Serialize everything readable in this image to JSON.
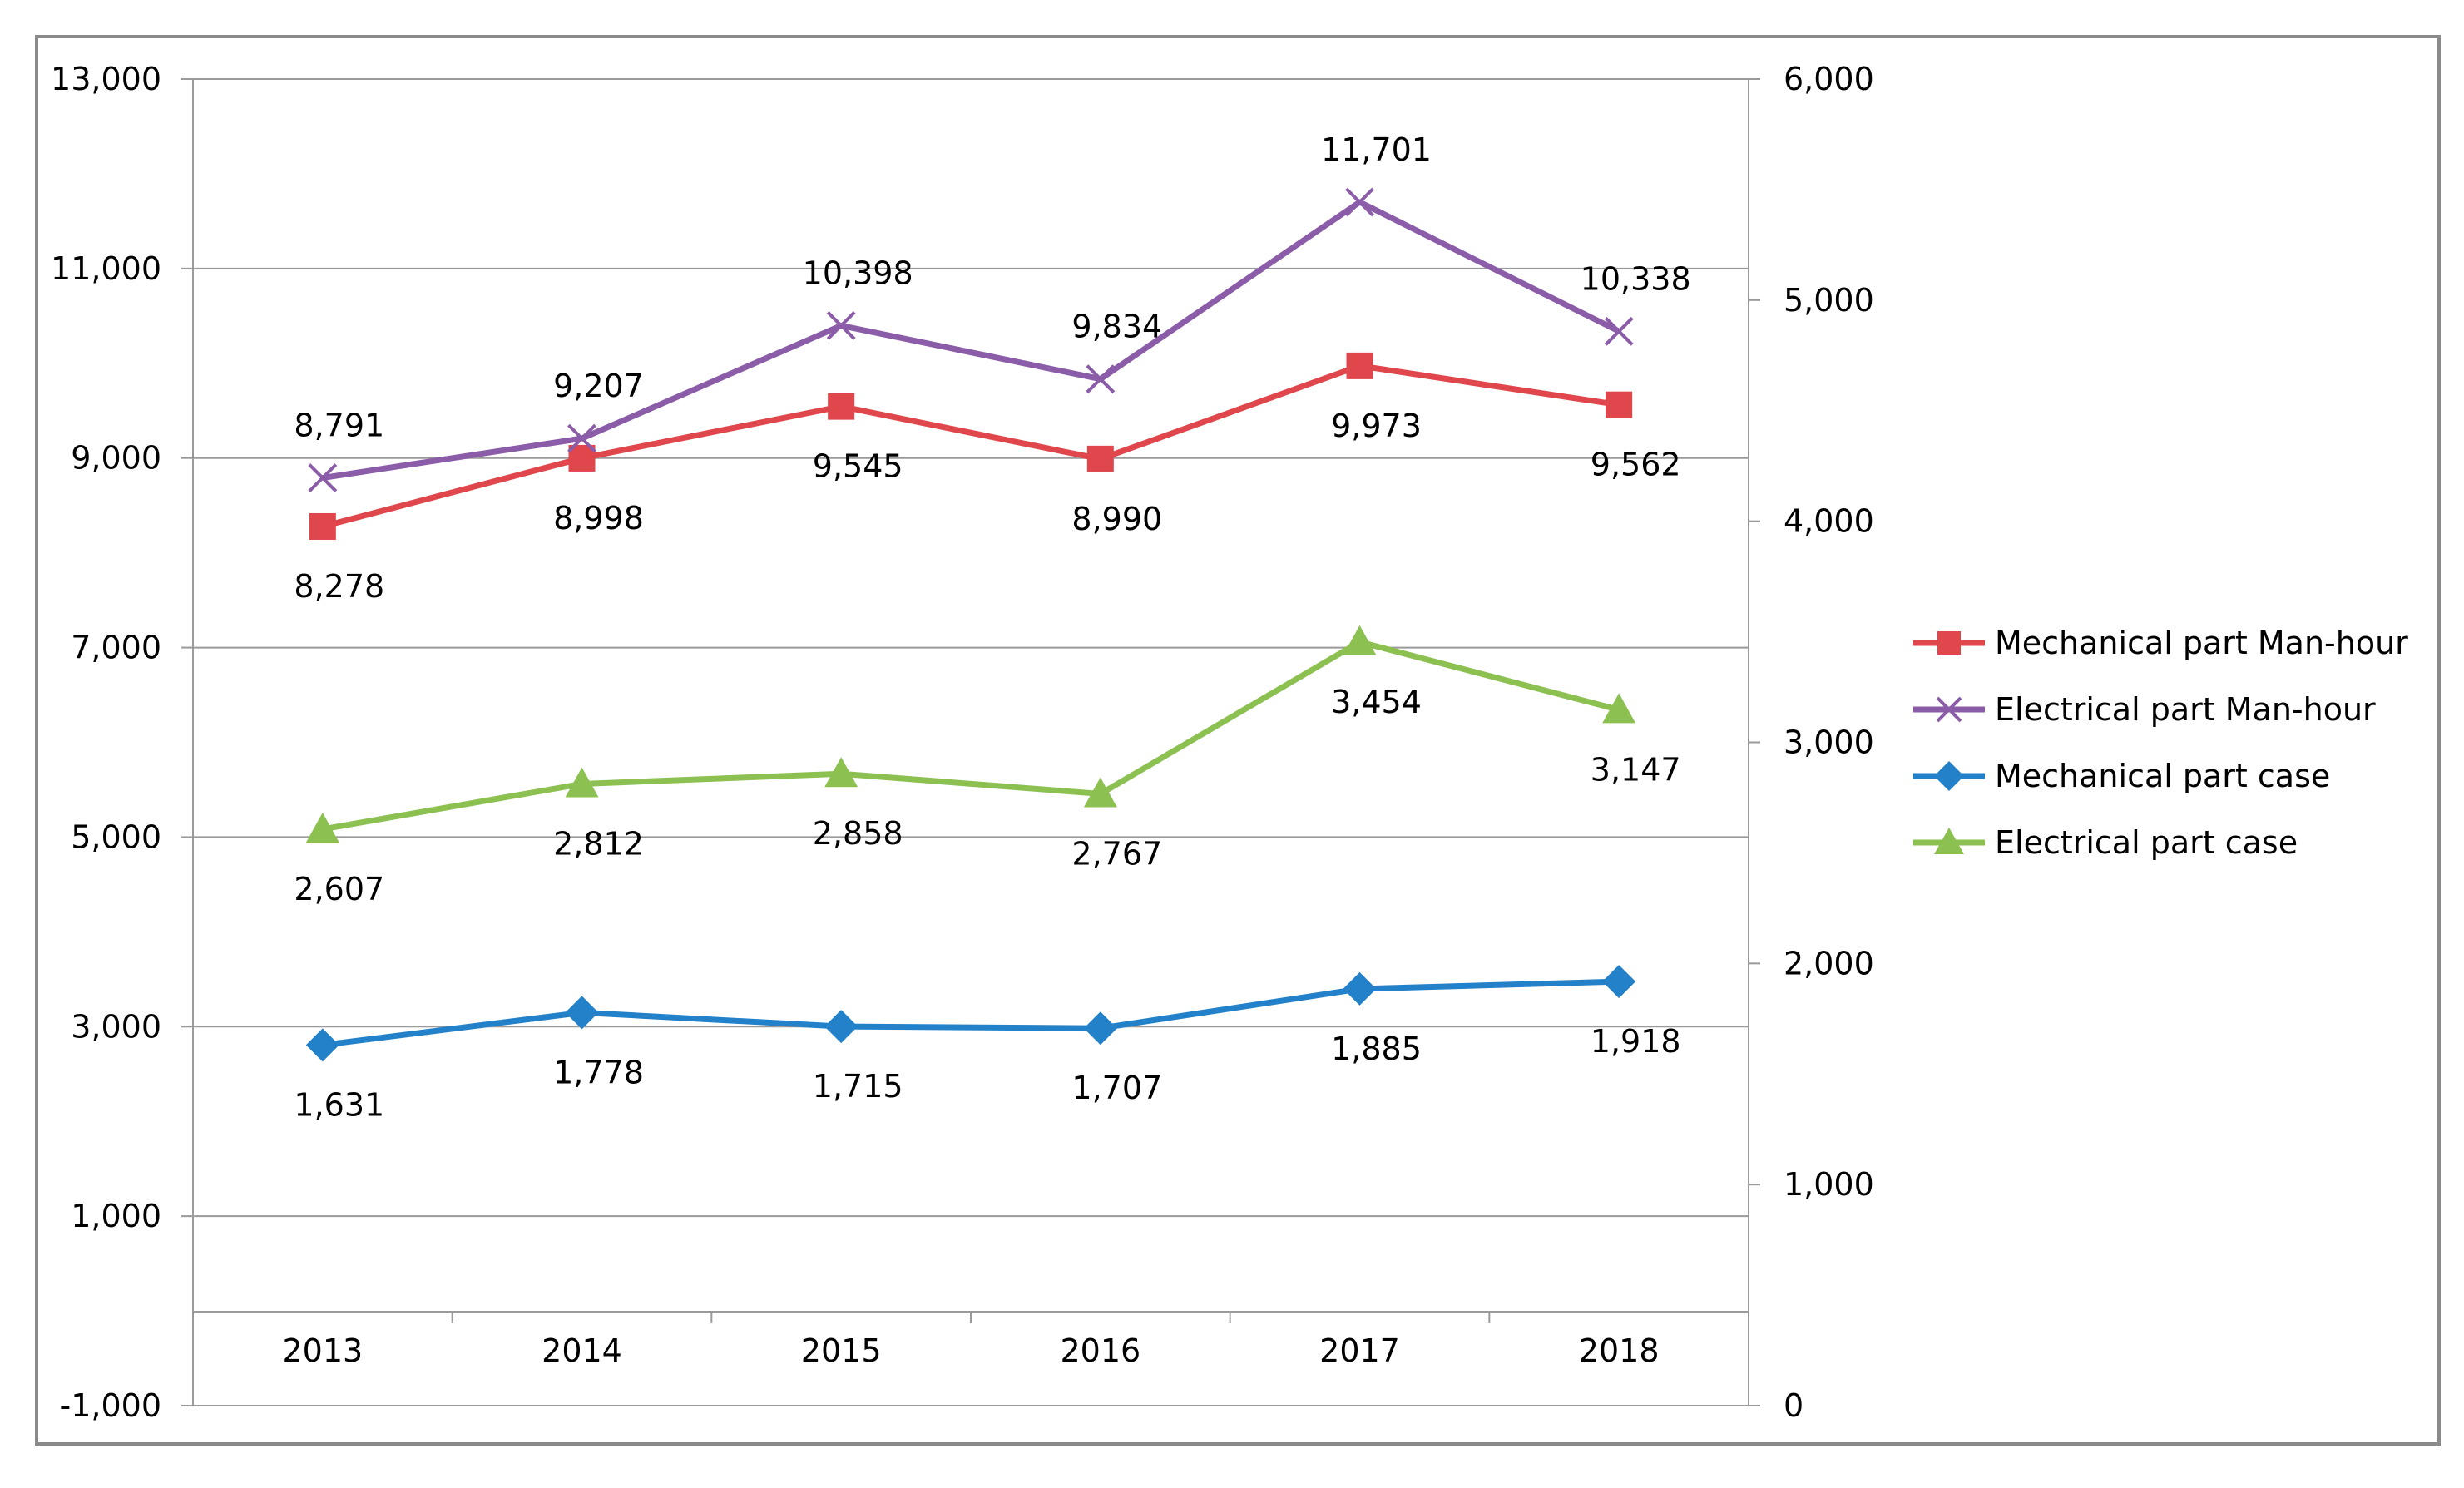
{
  "chart_data": {
    "type": "line",
    "title": "",
    "xlabel": "",
    "ylabel": "",
    "categories": [
      "2013",
      "2014",
      "2015",
      "2016",
      "2017",
      "2018"
    ],
    "y_left": {
      "range": [
        -1000,
        13000
      ],
      "ticks": [
        -1000,
        1000,
        3000,
        5000,
        7000,
        9000,
        11000,
        13000
      ],
      "tick_labels": [
        "-1,000",
        "1,000",
        "3,000",
        "5,000",
        "7,000",
        "9,000",
        "11,000",
        "13,000"
      ]
    },
    "y_right": {
      "range": [
        0,
        6000
      ],
      "ticks": [
        0,
        1000,
        2000,
        3000,
        4000,
        5000,
        6000
      ],
      "tick_labels": [
        "0",
        "1,000",
        "2,000",
        "3,000",
        "4,000",
        "5,000",
        "6,000"
      ]
    },
    "grid": true,
    "legend_position": "right",
    "series": [
      {
        "name": "Mechanical part Man-hour",
        "axis": "left",
        "marker": "square",
        "color": "#e0474c",
        "values": [
          8278,
          8998,
          9545,
          8990,
          9973,
          9562
        ],
        "labels": [
          "8,278",
          "8,998",
          "9,545",
          "8,990",
          "9,973",
          "9,562"
        ],
        "label_position": "below"
      },
      {
        "name": "Electrical part Man-hour",
        "axis": "left",
        "marker": "x",
        "color": "#8b5ca8",
        "values": [
          8791,
          9207,
          10398,
          9834,
          11701,
          10338
        ],
        "labels": [
          "8,791",
          "9,207",
          "10,398",
          "9,834",
          "11,701",
          "10,338"
        ],
        "label_position": "above"
      },
      {
        "name": "Mechanical part case",
        "axis": "right",
        "marker": "diamond",
        "color": "#2281c9",
        "values": [
          1631,
          1778,
          1715,
          1707,
          1885,
          1918
        ],
        "labels": [
          "1,631",
          "1,778",
          "1,715",
          "1,707",
          "1,885",
          "1,918"
        ],
        "label_position": "below"
      },
      {
        "name": "Electrical part case",
        "axis": "right",
        "marker": "triangle",
        "color": "#8cc152",
        "values": [
          2607,
          2812,
          2858,
          2767,
          3454,
          3147
        ],
        "labels": [
          "2,607",
          "2,812",
          "2,858",
          "2,767",
          "3,454",
          "3,147"
        ],
        "label_position": "below"
      }
    ]
  }
}
